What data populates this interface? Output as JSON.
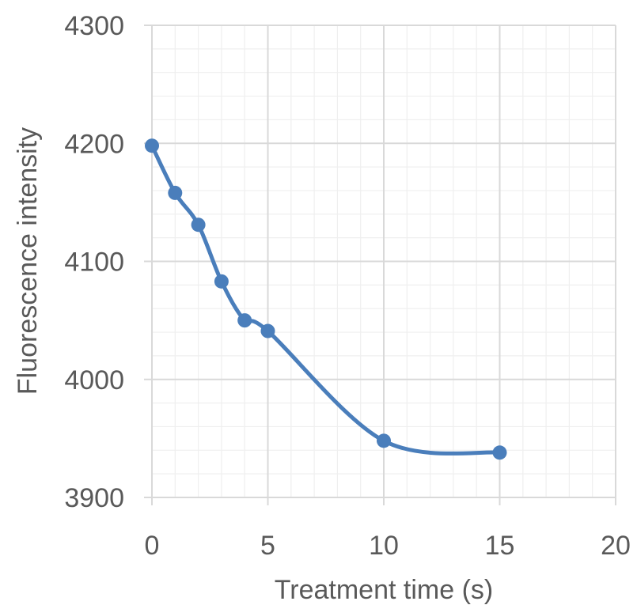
{
  "chart_data": {
    "type": "scatter",
    "smoothed": true,
    "markers": true,
    "title": "",
    "xlabel": "Treatment time (s)",
    "ylabel": "Fluorescence intensity",
    "xlim": [
      0,
      20
    ],
    "ylim": [
      3900,
      4300
    ],
    "x_major_step": 5,
    "x_minor_step": 1,
    "y_major_step": 100,
    "y_minor_step": 20,
    "x_ticks": [
      "0",
      "5",
      "10",
      "15",
      "20"
    ],
    "y_ticks": [
      "3900",
      "4000",
      "4100",
      "4200",
      "4300"
    ],
    "grid": true,
    "legend": "none",
    "series": [
      {
        "color": "#4a7ebb",
        "points": [
          {
            "x": 0,
            "y": 4198
          },
          {
            "x": 1,
            "y": 4158
          },
          {
            "x": 2,
            "y": 4131
          },
          {
            "x": 3,
            "y": 4083
          },
          {
            "x": 4,
            "y": 4050
          },
          {
            "x": 5,
            "y": 4041
          },
          {
            "x": 10,
            "y": 3948
          },
          {
            "x": 15,
            "y": 3938
          }
        ]
      }
    ],
    "colors": {
      "major_grid": "#d9d9d9",
      "minor_grid": "#efefef",
      "text": "#595959"
    }
  }
}
